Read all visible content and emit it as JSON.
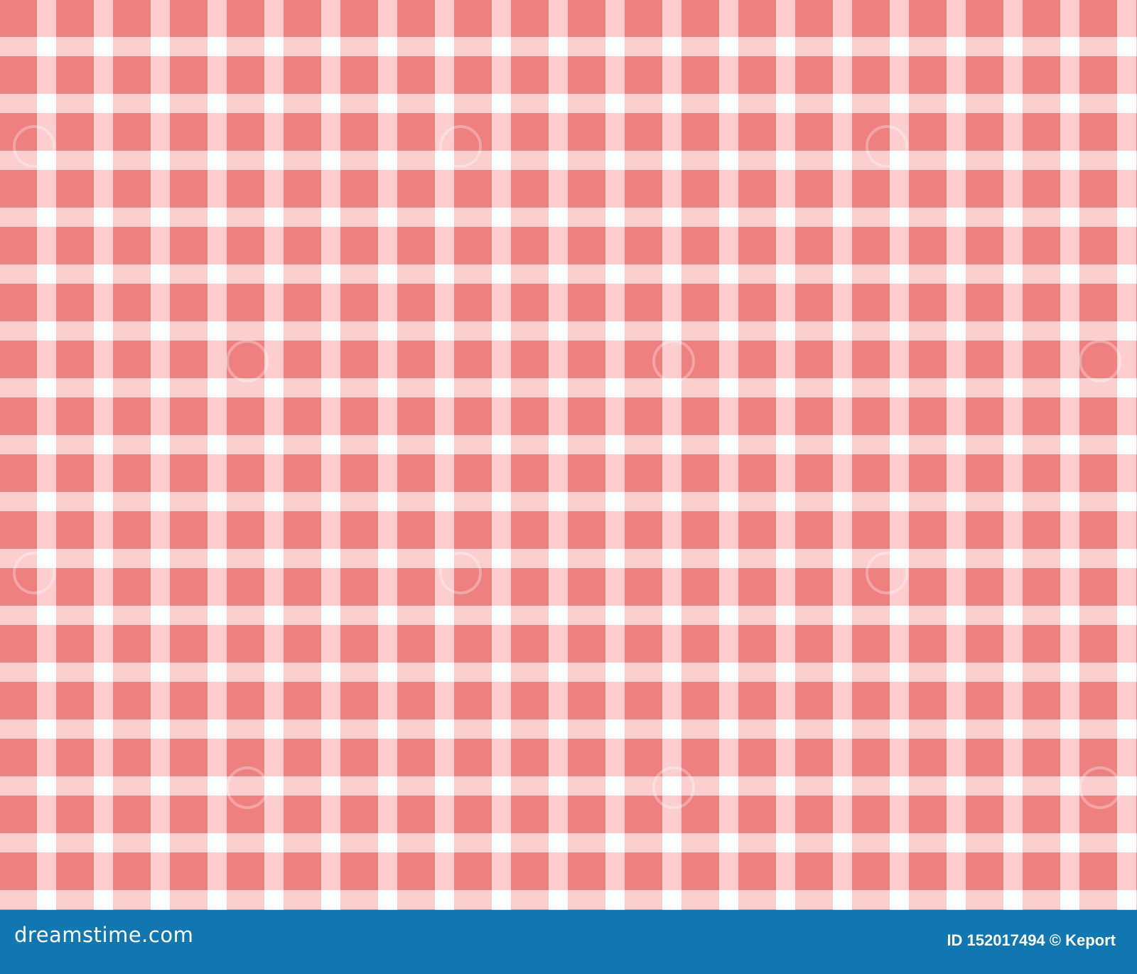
{
  "image": {
    "pattern": "gingham",
    "colors": {
      "base": "#ef8080",
      "stripe": "#fecccc",
      "crossing": "#ffffff",
      "footer": "#1177b0"
    }
  },
  "footer": {
    "logo": "dreamstime.com",
    "credit": "ID 152017494 © Keport"
  }
}
